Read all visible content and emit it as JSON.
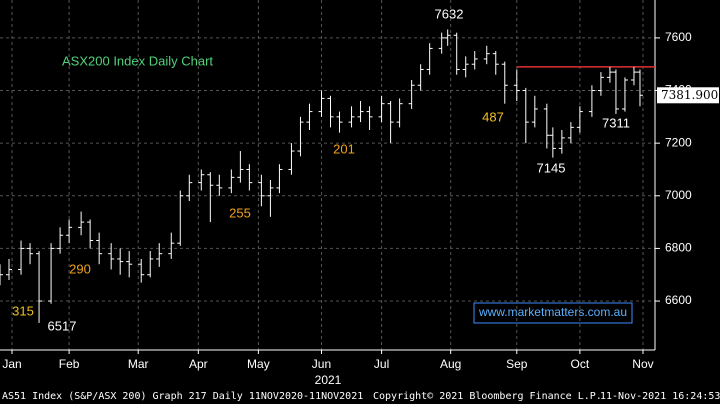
{
  "chart_data": {
    "type": "ohlc",
    "title": "ASX200 Index Daily Chart",
    "color": "#ffffff",
    "background": "#000000",
    "grid": true,
    "x": [
      0,
      3,
      7,
      10,
      13,
      17,
      20,
      23,
      27,
      30,
      33,
      37,
      40,
      43,
      47,
      50,
      53,
      57,
      60,
      63,
      67,
      70,
      73,
      77,
      80,
      83,
      87,
      90,
      93,
      97,
      100,
      103,
      107,
      110,
      113,
      117,
      120,
      123,
      127,
      130,
      133,
      137,
      140,
      143,
      147,
      149,
      152,
      155,
      158,
      162,
      165,
      168,
      172,
      175,
      178,
      182,
      184,
      187,
      190,
      193,
      197,
      200,
      203,
      205,
      208,
      211,
      213
    ],
    "open": [
      6690,
      6700,
      6720,
      6800,
      6780,
      6600,
      6800,
      6850,
      6880,
      6900,
      6830,
      6780,
      6760,
      6750,
      6740,
      6700,
      6760,
      6780,
      6820,
      7000,
      7050,
      7080,
      7040,
      7030,
      7070,
      7100,
      7050,
      7000,
      7030,
      7100,
      7170,
      7280,
      7320,
      7370,
      7300,
      7280,
      7300,
      7320,
      7300,
      7350,
      7280,
      7350,
      7420,
      7480,
      7560,
      7600,
      7610,
      7480,
      7500,
      7520,
      7540,
      7500,
      7420,
      7400,
      7280,
      7330,
      7230,
      7180,
      7220,
      7260,
      7320,
      7400,
      7450,
      7470,
      7330,
      7440,
      7470
    ],
    "high": [
      6740,
      6760,
      6830,
      6820,
      6790,
      6820,
      6880,
      6910,
      6940,
      6910,
      6860,
      6820,
      6800,
      6790,
      6760,
      6790,
      6820,
      6860,
      7020,
      7080,
      7100,
      7090,
      7080,
      7100,
      7170,
      7120,
      7080,
      7060,
      7120,
      7200,
      7300,
      7350,
      7400,
      7380,
      7320,
      7340,
      7360,
      7340,
      7380,
      7360,
      7370,
      7440,
      7500,
      7580,
      7620,
      7632,
      7620,
      7530,
      7550,
      7570,
      7550,
      7510,
      7480,
      7410,
      7380,
      7350,
      7260,
      7250,
      7280,
      7340,
      7420,
      7470,
      7490,
      7480,
      7450,
      7490,
      7480
    ],
    "low": [
      6660,
      6680,
      6700,
      6740,
      6517,
      6590,
      6780,
      6820,
      6850,
      6800,
      6740,
      6720,
      6700,
      6690,
      6670,
      6690,
      6730,
      6760,
      6810,
      6980,
      7020,
      6900,
      7000,
      7010,
      7050,
      7020,
      6960,
      6920,
      7010,
      7080,
      7150,
      7250,
      7300,
      7260,
      7240,
      7260,
      7280,
      7250,
      7280,
      7200,
      7260,
      7330,
      7400,
      7460,
      7540,
      7570,
      7460,
      7450,
      7480,
      7500,
      7460,
      7350,
      7360,
      7200,
      7260,
      7180,
      7145,
      7160,
      7200,
      7240,
      7300,
      7380,
      7430,
      7311,
      7320,
      7420,
      7340
    ],
    "close": [
      6700,
      6720,
      6800,
      6780,
      6600,
      6800,
      6850,
      6880,
      6900,
      6830,
      6780,
      6760,
      6750,
      6740,
      6700,
      6760,
      6780,
      6820,
      7000,
      7050,
      7080,
      7040,
      7030,
      7070,
      7100,
      7050,
      7000,
      7030,
      7100,
      7170,
      7280,
      7320,
      7370,
      7300,
      7280,
      7300,
      7320,
      7300,
      7350,
      7280,
      7350,
      7420,
      7480,
      7560,
      7600,
      7610,
      7480,
      7500,
      7520,
      7540,
      7500,
      7420,
      7400,
      7280,
      7330,
      7230,
      7180,
      7220,
      7260,
      7320,
      7400,
      7450,
      7470,
      7330,
      7440,
      7470,
      7382
    ],
    "xlim": [
      0,
      218
    ],
    "xticks": [
      {
        "value": 4,
        "label": "Jan"
      },
      {
        "value": 23,
        "label": "Feb"
      },
      {
        "value": 46,
        "label": "Mar"
      },
      {
        "value": 66,
        "label": "Apr"
      },
      {
        "value": 86,
        "label": "May"
      },
      {
        "value": 107,
        "label": "Jun"
      },
      {
        "value": 127,
        "label": "Jul"
      },
      {
        "value": 150,
        "label": "Aug"
      },
      {
        "value": 172,
        "label": "Sep"
      },
      {
        "value": 193,
        "label": "Oct"
      },
      {
        "value": 214,
        "label": "Nov"
      }
    ],
    "year_label": "2021",
    "ylim": [
      6414,
      7744
    ],
    "yticks": [
      6600,
      6800,
      7000,
      7200,
      7400,
      7600
    ],
    "last_price": {
      "value": 7381.9,
      "label": "7381.900"
    },
    "resistance": {
      "value": 7490,
      "from": 172,
      "color": "#e03030"
    },
    "annotations": [
      {
        "text": "315",
        "color": "#f0c020"
      },
      {
        "text": "290",
        "color": "#f0a020"
      },
      {
        "text": "255",
        "color": "#f0a020"
      },
      {
        "text": "201",
        "color": "#f0a020"
      },
      {
        "text": "487",
        "color": "#f0c020"
      },
      {
        "text": "6517",
        "color": "#ffffff"
      },
      {
        "text": "7632",
        "color": "#ffffff"
      },
      {
        "text": "7145",
        "color": "#ffffff"
      },
      {
        "text": "7311",
        "color": "#ffffff"
      }
    ],
    "watermark": "www.marketmatters.com.au",
    "footer": [
      "AS51 Index (S&P/ASX 200) Graph 217  Daily 11NOV2020-11NOV2021",
      "Copyright© 2021 Bloomberg Finance L.P.",
      "11-Nov-2021 16:24:53"
    ]
  }
}
